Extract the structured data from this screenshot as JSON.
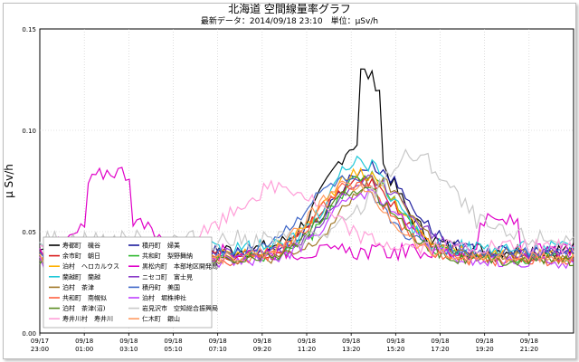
{
  "chart_data": {
    "type": "line",
    "title": "北海道 空間線量率グラフ",
    "subtitle": "最新データ：2014/09/18 23:10　単位：μSv/h",
    "ylabel": "μ Sv/h",
    "xlabel": "",
    "ylim": [
      0,
      0.15
    ],
    "yticks": [
      "0.00",
      "0.05",
      "0.10",
      "0.15"
    ],
    "xtick_labels": [
      [
        "09/17",
        "23:00"
      ],
      [
        "09/18",
        "01:00"
      ],
      [
        "09/18",
        "03:10"
      ],
      [
        "09/18",
        "05:10"
      ],
      [
        "09/18",
        "07:10"
      ],
      [
        "09/18",
        "09:20"
      ],
      [
        "09/18",
        "11:20"
      ],
      [
        "09/18",
        "13:20"
      ],
      [
        "09/18",
        "15:20"
      ],
      [
        "09/18",
        "17:20"
      ],
      [
        "09/18",
        "19:20"
      ],
      [
        "09/18",
        "21:20"
      ]
    ],
    "grid": true,
    "legend_position": "lower-left",
    "series": [
      {
        "name": "寿都町　磯谷",
        "color": "#000000"
      },
      {
        "name": "積丹町　婦美",
        "color": "#1a1a9c"
      },
      {
        "name": "余市町　朝日",
        "color": "#d81b1b"
      },
      {
        "name": "共和町　梨野舞納",
        "color": "#2eb82e"
      },
      {
        "name": "泊村　ヘロカルウス",
        "color": "#ffb000"
      },
      {
        "name": "黒松内町　本部地区開発局",
        "color": "#e000c8"
      },
      {
        "name": "蘭越町　蘭越",
        "color": "#20c8d8"
      },
      {
        "name": "ニセコ町　富士見",
        "color": "#8a3cc8"
      },
      {
        "name": "泊村　茶津",
        "color": "#a07828"
      },
      {
        "name": "積丹町　美国",
        "color": "#4068c8"
      },
      {
        "name": "共和町　南幌似",
        "color": "#ff6040"
      },
      {
        "name": "泊村　堀株神社",
        "color": "#c040ff"
      },
      {
        "name": "泊村　茶津(沼)",
        "color": "#588a20"
      },
      {
        "name": "岩見沢市　空知総合振興局",
        "color": "#c8c8c8"
      },
      {
        "name": "寿井川村　寿井川",
        "color": "#ff9ed8"
      },
      {
        "name": "仁木町　銀山",
        "color": "#ff9a60"
      }
    ]
  }
}
